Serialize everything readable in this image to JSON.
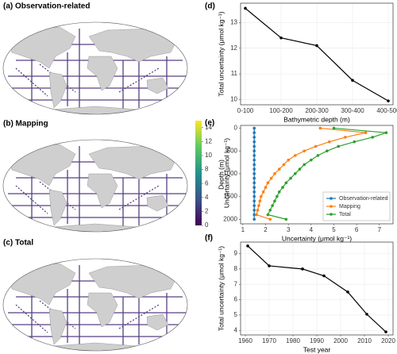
{
  "chart_data": [
    {
      "type": "map",
      "title": "(a) Observation-related"
    },
    {
      "type": "map",
      "title": "(b) Mapping"
    },
    {
      "type": "map",
      "title": "(c) Total"
    },
    {
      "type": "colorbar",
      "title": "Uncertainty (μmol kg⁻¹)",
      "ylim": [
        0,
        15
      ],
      "yticks": [
        0,
        2,
        4,
        6,
        8,
        10,
        12,
        14
      ],
      "colors": [
        "#440154",
        "#3b528b",
        "#21918c",
        "#5ec962",
        "#fde725"
      ]
    },
    {
      "type": "line",
      "label": "(d)",
      "xlabel": "Bathymetric depth (m)",
      "ylabel": "Total uncertainty (μmol kg⁻¹)",
      "categories": [
        "0-100",
        "100-200",
        "200-300",
        "300-400",
        "400-500"
      ],
      "values": [
        13.55,
        12.4,
        12.1,
        10.75,
        9.95
      ],
      "color": "#000000",
      "ylim": [
        9.8,
        13.75
      ],
      "yticks": [
        10,
        11,
        12,
        13
      ],
      "grid": true
    },
    {
      "type": "line",
      "label": "(e)",
      "xlabel": "Uncertainty (μmol kg⁻¹)",
      "ylabel": "Depth (m)",
      "y": [
        0,
        100,
        200,
        300,
        400,
        500,
        600,
        700,
        800,
        900,
        1000,
        1100,
        1200,
        1300,
        1400,
        1500,
        1600,
        1700,
        1800,
        1900,
        2000
      ],
      "series": [
        {
          "name": "Observation-related",
          "color": "#1f77b4",
          "x": [
            1.5,
            1.5,
            1.5,
            1.5,
            1.5,
            1.5,
            1.5,
            1.5,
            1.5,
            1.5,
            1.5,
            1.5,
            1.5,
            1.5,
            1.5,
            1.5,
            1.5,
            1.5,
            1.5,
            1.5,
            1.5
          ]
        },
        {
          "name": "Mapping",
          "color": "#ff7f0e",
          "x": [
            4.4,
            6.4,
            5.5,
            4.8,
            4.2,
            3.7,
            3.3,
            3.0,
            2.8,
            2.6,
            2.4,
            2.25,
            2.1,
            2.0,
            1.9,
            1.8,
            1.75,
            1.7,
            1.65,
            1.6,
            2.2
          ]
        },
        {
          "name": "Total",
          "color": "#2ca02c",
          "x": [
            5.0,
            7.3,
            6.7,
            5.9,
            5.2,
            4.7,
            4.3,
            4.0,
            3.7,
            3.5,
            3.3,
            3.1,
            2.9,
            2.75,
            2.6,
            2.5,
            2.4,
            2.3,
            2.2,
            2.1,
            2.9
          ]
        }
      ],
      "xlim": [
        0.9,
        7.6
      ],
      "xticks": [
        1,
        2,
        3,
        4,
        5,
        6,
        7
      ],
      "ylim": [
        2100,
        -60
      ],
      "yticks": [
        0,
        500,
        1000,
        1500,
        2000
      ],
      "grid": false,
      "legend": "lower-right"
    },
    {
      "type": "line",
      "label": "(f)",
      "xlabel": "Test year",
      "ylabel": "Total uncertainty (μmol kg⁻¹)",
      "x": [
        1961,
        1970,
        1984,
        1993,
        2003,
        2011,
        2019
      ],
      "values": [
        9.5,
        8.2,
        8.0,
        7.55,
        6.5,
        5.05,
        3.9
      ],
      "color": "#000000",
      "xlim": [
        1958,
        2022
      ],
      "xticks": [
        1960,
        1970,
        1980,
        1990,
        2000,
        2010,
        2020
      ],
      "ylim": [
        3.7,
        9.75
      ],
      "yticks": [
        4,
        5,
        6,
        7,
        8,
        9
      ],
      "grid": true
    }
  ]
}
